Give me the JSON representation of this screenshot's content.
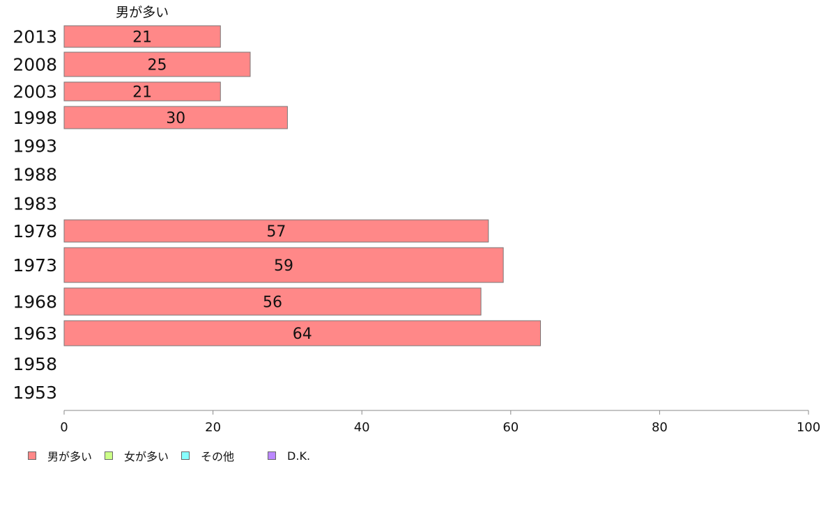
{
  "chart_data": {
    "type": "bar",
    "orientation": "horizontal",
    "series_top_label": "男が多い",
    "categories": [
      "2013",
      "2008",
      "2003",
      "1998",
      "1993",
      "1988",
      "1983",
      "1978",
      "1973",
      "1968",
      "1963",
      "1958",
      "1953"
    ],
    "series": [
      {
        "name": "男が多い",
        "color": "#ff8888",
        "values": [
          21,
          25,
          21,
          30,
          null,
          null,
          null,
          57,
          59,
          56,
          64,
          null,
          null
        ],
        "labels": [
          "21",
          "25",
          "21",
          "30",
          "",
          "",
          "",
          "57",
          "59",
          "56",
          "64",
          "",
          ""
        ]
      },
      {
        "name": "女が多い",
        "color": "#ccff88",
        "values": [
          null,
          null,
          null,
          null,
          null,
          null,
          null,
          null,
          null,
          null,
          null,
          null,
          null
        ]
      },
      {
        "name": "その他",
        "color": "#88ffff",
        "values": [
          null,
          null,
          null,
          null,
          null,
          null,
          null,
          null,
          null,
          null,
          null,
          null,
          null
        ]
      },
      {
        "name": "D.K.",
        "color": "#bb88ff",
        "values": [
          null,
          null,
          null,
          null,
          null,
          null,
          null,
          null,
          null,
          null,
          null,
          null,
          null
        ]
      }
    ],
    "xlim": [
      0,
      100
    ],
    "xticks": [
      "0",
      "20",
      "40",
      "60",
      "80",
      "100"
    ],
    "grid": false,
    "legend_position": "bottom-left"
  }
}
